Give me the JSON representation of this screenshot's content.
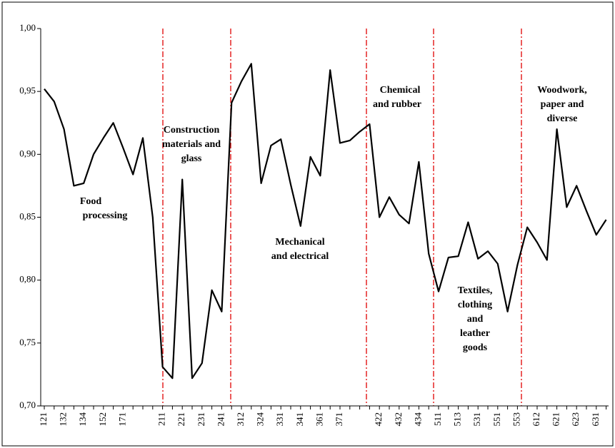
{
  "chart_data": {
    "type": "line",
    "categories": [
      "121",
      null,
      "132",
      null,
      "134",
      null,
      "152",
      null,
      "171",
      null,
      null,
      null,
      "211",
      null,
      "221",
      null,
      "231",
      null,
      "241",
      null,
      "312",
      null,
      "324",
      null,
      "331",
      null,
      "341",
      null,
      "361",
      null,
      "371",
      null,
      null,
      null,
      "422",
      null,
      "432",
      null,
      "434",
      null,
      "511",
      null,
      "513",
      null,
      "531",
      null,
      "551",
      null,
      "553",
      null,
      "612",
      null,
      "621",
      null,
      "623",
      null,
      "631",
      null
    ],
    "series": [
      {
        "color": "#000000",
        "values": [
          0.952,
          0.942,
          0.92,
          0.875,
          0.877,
          0.9,
          0.913,
          0.925,
          0.905,
          0.884,
          0.913,
          0.85,
          0.731,
          0.722,
          0.88,
          0.722,
          0.734,
          0.792,
          0.775,
          0.941,
          0.958,
          0.972,
          0.877,
          0.907,
          0.912,
          0.876,
          0.843,
          0.898,
          0.883,
          0.967,
          0.909,
          0.911,
          0.918,
          0.924,
          0.85,
          0.866,
          0.852,
          0.845,
          0.894,
          0.821,
          0.791,
          0.818,
          0.819,
          0.846,
          0.817,
          0.823,
          0.813,
          0.775,
          0.812,
          0.842,
          0.83,
          0.816,
          0.92,
          0.858,
          0.875,
          0.855,
          0.836,
          0.848
        ]
      }
    ],
    "ylim": [
      0.7,
      1.0
    ],
    "yticks": [
      {
        "value": 0.7,
        "label": "0,70"
      },
      {
        "value": 0.75,
        "label": "0,75"
      },
      {
        "value": 0.8,
        "label": "0,80"
      },
      {
        "value": 0.85,
        "label": "0,85"
      },
      {
        "value": 0.9,
        "label": "0,90"
      },
      {
        "value": 0.95,
        "label": "0,95"
      },
      {
        "value": 1.0,
        "label": "1,00"
      }
    ],
    "annotations": [
      {
        "lines": [
          "Food",
          "processing"
        ]
      },
      {
        "lines": [
          "Construction",
          "materials and",
          "glass"
        ]
      },
      {
        "lines": [
          "Mechanical",
          "and electrical"
        ]
      },
      {
        "lines": [
          "Chemical",
          "and rubber"
        ]
      },
      {
        "lines": [
          "Textiles,",
          "clothing",
          "and",
          "leather",
          "goods"
        ]
      },
      {
        "lines": [
          "Woodwork,",
          "paper and",
          "diverse"
        ]
      }
    ]
  }
}
